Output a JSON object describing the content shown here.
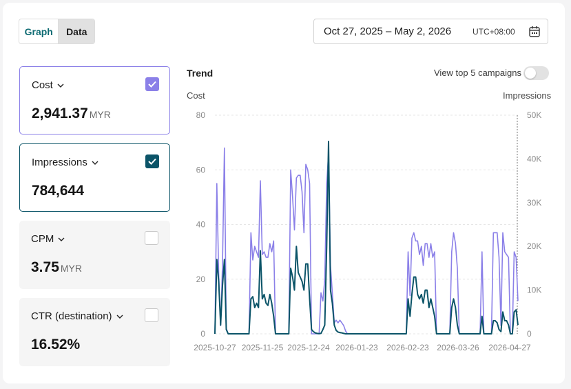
{
  "view_toggle": {
    "graph_label": "Graph",
    "data_label": "Data"
  },
  "date_range": {
    "range": "Oct 27, 2025 – May 2, 2026",
    "timezone": "UTC+08:00"
  },
  "metrics": [
    {
      "label": "Cost",
      "value": "2,941.37",
      "unit": "MYR",
      "checked": true,
      "color": "#8b80e8"
    },
    {
      "label": "Impressions",
      "value": "784,644",
      "unit": "",
      "checked": true,
      "color": "#0b5468"
    },
    {
      "label": "CPM",
      "value": "3.75",
      "unit": "MYR",
      "checked": false
    },
    {
      "label": "CTR (destination)",
      "value": "16.52%",
      "unit": "",
      "checked": false
    }
  ],
  "trend": {
    "title": "Trend",
    "top5_label": "View top 5 campaigns",
    "top5_enabled": false
  },
  "chart_data": {
    "type": "line",
    "left_axis_label": "Cost",
    "right_axis_label": "Impressions",
    "y_left_ticks": [
      "0",
      "20",
      "40",
      "60",
      "80"
    ],
    "y_right_ticks": [
      "0",
      "10K",
      "20K",
      "30K",
      "40K",
      "50K"
    ],
    "ylim_left": [
      0,
      80
    ],
    "ylim_right": [
      0,
      50000
    ],
    "x_ticks": [
      "2025-10-27",
      "2025-11-25",
      "2025-12-24",
      "2026-01-23",
      "2026-02-23",
      "2026-03-26",
      "2026-04-27"
    ],
    "grid": true,
    "series": [
      {
        "name": "Cost",
        "axis": "left",
        "color": "#8b80e8",
        "points": [
          [
            0,
            0
          ],
          [
            1,
            55
          ],
          [
            2,
            22
          ],
          [
            3,
            3
          ],
          [
            4,
            25
          ],
          [
            5,
            68
          ],
          [
            6,
            2
          ],
          [
            7,
            0
          ],
          [
            8,
            0
          ],
          [
            9,
            0
          ],
          [
            10,
            0
          ],
          [
            11,
            0
          ],
          [
            12,
            0
          ],
          [
            13,
            0
          ],
          [
            14,
            0
          ],
          [
            15,
            0
          ],
          [
            16,
            0
          ],
          [
            17,
            0
          ],
          [
            18,
            0
          ],
          [
            19,
            37
          ],
          [
            20,
            27
          ],
          [
            21,
            32
          ],
          [
            22,
            30
          ],
          [
            23,
            28
          ],
          [
            24,
            56
          ],
          [
            25,
            29
          ],
          [
            26,
            30
          ],
          [
            27,
            28
          ],
          [
            28,
            28
          ],
          [
            29,
            33
          ],
          [
            30,
            30
          ],
          [
            31,
            34
          ],
          [
            32,
            0
          ],
          [
            33,
            0
          ],
          [
            34,
            0
          ],
          [
            35,
            0
          ],
          [
            36,
            0
          ],
          [
            37,
            0
          ],
          [
            38,
            0
          ],
          [
            39,
            0
          ],
          [
            40,
            60
          ],
          [
            41,
            50
          ],
          [
            42,
            38
          ],
          [
            43,
            57
          ],
          [
            44,
            58
          ],
          [
            45,
            58
          ],
          [
            46,
            52
          ],
          [
            47,
            37
          ],
          [
            48,
            62
          ],
          [
            49,
            60
          ],
          [
            50,
            55
          ],
          [
            51,
            0
          ],
          [
            52,
            0
          ],
          [
            53,
            0
          ],
          [
            54,
            0
          ],
          [
            55,
            0
          ],
          [
            56,
            15
          ],
          [
            57,
            12
          ],
          [
            58,
            20
          ],
          [
            59,
            55
          ],
          [
            60,
            66
          ],
          [
            61,
            25
          ],
          [
            62,
            15
          ],
          [
            63,
            4
          ],
          [
            64,
            5
          ],
          [
            65,
            4
          ],
          [
            66,
            5
          ],
          [
            67,
            4
          ],
          [
            68,
            3
          ],
          [
            69,
            1
          ],
          [
            70,
            0
          ],
          [
            75,
            0
          ],
          [
            80,
            0
          ],
          [
            85,
            0
          ],
          [
            90,
            0
          ],
          [
            95,
            0
          ],
          [
            100,
            0
          ],
          [
            101,
            0
          ],
          [
            102,
            30
          ],
          [
            103,
            14
          ],
          [
            104,
            35
          ],
          [
            105,
            37
          ],
          [
            106,
            34
          ],
          [
            107,
            34
          ],
          [
            108,
            29
          ],
          [
            109,
            32
          ],
          [
            110,
            25
          ],
          [
            111,
            33
          ],
          [
            112,
            33
          ],
          [
            113,
            28
          ],
          [
            114,
            33
          ],
          [
            115,
            28
          ],
          [
            116,
            30
          ],
          [
            117,
            0
          ],
          [
            118,
            0
          ],
          [
            119,
            0
          ],
          [
            120,
            0
          ],
          [
            121,
            0
          ],
          [
            122,
            0
          ],
          [
            123,
            0
          ],
          [
            124,
            0
          ],
          [
            125,
            30
          ],
          [
            126,
            37
          ],
          [
            127,
            33
          ],
          [
            128,
            24
          ],
          [
            129,
            0
          ],
          [
            130,
            0
          ],
          [
            131,
            0
          ],
          [
            132,
            0
          ],
          [
            133,
            0
          ],
          [
            134,
            0
          ],
          [
            135,
            0
          ],
          [
            136,
            0
          ],
          [
            137,
            0
          ],
          [
            138,
            0
          ],
          [
            139,
            0
          ],
          [
            140,
            0
          ],
          [
            141,
            30
          ],
          [
            142,
            0
          ],
          [
            143,
            0
          ],
          [
            144,
            0
          ],
          [
            145,
            0
          ],
          [
            146,
            0
          ],
          [
            147,
            37
          ],
          [
            148,
            37
          ],
          [
            149,
            37
          ],
          [
            150,
            28
          ],
          [
            151,
            3
          ],
          [
            152,
            37
          ],
          [
            153,
            30
          ],
          [
            154,
            29
          ],
          [
            155,
            28
          ],
          [
            156,
            0
          ],
          [
            157,
            0
          ],
          [
            158,
            30
          ],
          [
            159,
            28
          ],
          [
            160,
            12
          ]
        ]
      },
      {
        "name": "Impressions",
        "axis": "right",
        "color": "#0b5468",
        "points": [
          [
            0,
            0
          ],
          [
            1,
            17000
          ],
          [
            2,
            12000
          ],
          [
            3,
            2000
          ],
          [
            4,
            11000
          ],
          [
            5,
            17000
          ],
          [
            6,
            1000
          ],
          [
            7,
            0
          ],
          [
            8,
            0
          ],
          [
            9,
            0
          ],
          [
            10,
            0
          ],
          [
            11,
            0
          ],
          [
            12,
            0
          ],
          [
            13,
            0
          ],
          [
            14,
            0
          ],
          [
            15,
            0
          ],
          [
            16,
            0
          ],
          [
            17,
            0
          ],
          [
            18,
            0
          ],
          [
            19,
            8000
          ],
          [
            20,
            8500
          ],
          [
            21,
            6000
          ],
          [
            22,
            7000
          ],
          [
            23,
            6000
          ],
          [
            24,
            19000
          ],
          [
            25,
            8000
          ],
          [
            26,
            9000
          ],
          [
            27,
            7000
          ],
          [
            28,
            6500
          ],
          [
            29,
            9000
          ],
          [
            30,
            7000
          ],
          [
            31,
            4000
          ],
          [
            32,
            0
          ],
          [
            33,
            0
          ],
          [
            34,
            0
          ],
          [
            35,
            0
          ],
          [
            36,
            0
          ],
          [
            37,
            0
          ],
          [
            38,
            0
          ],
          [
            39,
            0
          ],
          [
            40,
            15000
          ],
          [
            41,
            13000
          ],
          [
            42,
            10000
          ],
          [
            43,
            20000
          ],
          [
            44,
            14000
          ],
          [
            45,
            13000
          ],
          [
            46,
            12000
          ],
          [
            47,
            10000
          ],
          [
            48,
            16000
          ],
          [
            49,
            16000
          ],
          [
            50,
            8000
          ],
          [
            51,
            1000
          ],
          [
            52,
            500
          ],
          [
            53,
            200
          ],
          [
            54,
            100
          ],
          [
            55,
            50
          ],
          [
            56,
            100
          ],
          [
            57,
            1000
          ],
          [
            58,
            2000
          ],
          [
            59,
            20000
          ],
          [
            60,
            44000
          ],
          [
            61,
            10000
          ],
          [
            62,
            7000
          ],
          [
            63,
            2000
          ],
          [
            64,
            800
          ],
          [
            65,
            400
          ],
          [
            66,
            300
          ],
          [
            67,
            200
          ],
          [
            68,
            100
          ],
          [
            69,
            0
          ],
          [
            70,
            0
          ],
          [
            75,
            0
          ],
          [
            80,
            0
          ],
          [
            85,
            0
          ],
          [
            90,
            0
          ],
          [
            95,
            0
          ],
          [
            100,
            0
          ],
          [
            101,
            0
          ],
          [
            102,
            8000
          ],
          [
            103,
            4000
          ],
          [
            104,
            9000
          ],
          [
            105,
            13000
          ],
          [
            106,
            13000
          ],
          [
            107,
            9000
          ],
          [
            108,
            8000
          ],
          [
            109,
            9000
          ],
          [
            110,
            7000
          ],
          [
            111,
            10000
          ],
          [
            112,
            10000
          ],
          [
            113,
            6000
          ],
          [
            114,
            8000
          ],
          [
            115,
            6000
          ],
          [
            116,
            4000
          ],
          [
            117,
            0
          ],
          [
            118,
            0
          ],
          [
            119,
            0
          ],
          [
            120,
            0
          ],
          [
            121,
            0
          ],
          [
            122,
            0
          ],
          [
            123,
            0
          ],
          [
            124,
            0
          ],
          [
            125,
            6000
          ],
          [
            126,
            8000
          ],
          [
            127,
            6000
          ],
          [
            128,
            2000
          ],
          [
            129,
            0
          ],
          [
            130,
            0
          ],
          [
            131,
            0
          ],
          [
            132,
            0
          ],
          [
            133,
            0
          ],
          [
            134,
            0
          ],
          [
            135,
            0
          ],
          [
            136,
            0
          ],
          [
            137,
            0
          ],
          [
            138,
            0
          ],
          [
            139,
            0
          ],
          [
            140,
            0
          ],
          [
            141,
            4000
          ],
          [
            142,
            0
          ],
          [
            143,
            0
          ],
          [
            144,
            0
          ],
          [
            145,
            0
          ],
          [
            146,
            0
          ],
          [
            147,
            3000
          ],
          [
            148,
            3000
          ],
          [
            149,
            2500
          ],
          [
            150,
            1000
          ],
          [
            151,
            500
          ],
          [
            152,
            5000
          ],
          [
            153,
            3000
          ],
          [
            154,
            3000
          ],
          [
            155,
            2000
          ],
          [
            156,
            0
          ],
          [
            157,
            0
          ],
          [
            158,
            5000
          ],
          [
            159,
            5500
          ],
          [
            160,
            2000
          ]
        ]
      }
    ]
  }
}
